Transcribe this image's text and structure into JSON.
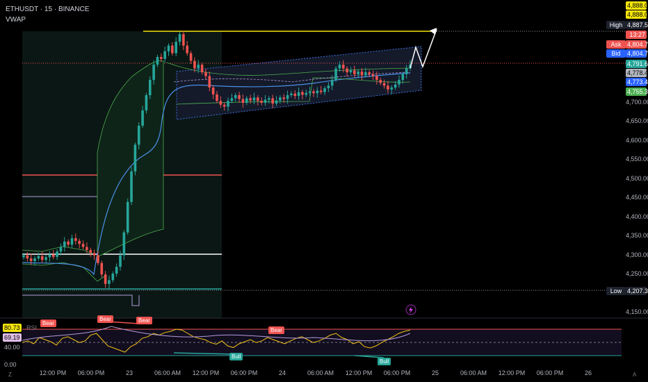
{
  "header": {
    "symbol_line": "ETHUSDT · 15 · BINANCE",
    "indicator": "VWAP"
  },
  "price_labels": {
    "top1": "4,888.02",
    "top2": "4,888.02",
    "high_tag": "High",
    "high": "4,887.59",
    "countdown": "13:27",
    "ask_tag": "Ask",
    "ask": "4,804.73",
    "bid_tag": "Bid",
    "bid": "4,804.72",
    "p1": "4,791.64",
    "p2": "4,778.40",
    "p3": "4,773.49",
    "p4": "4,755.35",
    "low_tag": "Low",
    "low": "4,207.39"
  },
  "rsi_labels": {
    "v1": "80.73",
    "v2": "69.19",
    "v3": "40.00",
    "v4": "0.00",
    "name": "RSI"
  },
  "signals": {
    "bear": "Bear",
    "bull": "Bull"
  },
  "corners": {
    "left": "Z",
    "right": "A"
  },
  "colors": {
    "up": "#26a69a",
    "down": "#ef5350",
    "vwap": "#4a8fe7",
    "high_line": "#f5e50a",
    "rsi": "#f5c518"
  },
  "chart_data": {
    "type": "candlestick",
    "y_ticks": [
      "4,700.00",
      "4,650.00",
      "4,600.00",
      "4,550.00",
      "4,500.00",
      "4,450.00",
      "4,400.00",
      "4,350.00",
      "4,300.00",
      "4,250.00",
      "4,150.00"
    ],
    "y_values": [
      4700,
      4650,
      4600,
      4550,
      4500,
      4450,
      4400,
      4350,
      4300,
      4250,
      4150
    ],
    "x_ticks": [
      "12:00 PM",
      "06:00 PM",
      "23",
      "06:00 AM",
      "12:00 PM",
      "06:00 PM",
      "24",
      "06:00 AM",
      "12:00 PM",
      "06:00 PM",
      "25",
      "06:00 AM",
      "12:00 PM",
      "06:00 PM",
      "26"
    ],
    "ylim": [
      4140,
      4900
    ],
    "high": 4887.59,
    "low": 4207.39,
    "closes": [
      4300,
      4292,
      4285,
      4292,
      4298,
      4288,
      4295,
      4302,
      4296,
      4310,
      4322,
      4336,
      4328,
      4345,
      4338,
      4330,
      4322,
      4314,
      4306,
      4300,
      4280,
      4250,
      4225,
      4235,
      4252,
      4270,
      4300,
      4360,
      4440,
      4520,
      4590,
      4640,
      4680,
      4720,
      4760,
      4800,
      4820,
      4815,
      4835,
      4850,
      4830,
      4860,
      4880,
      4850,
      4830,
      4810,
      4790,
      4800,
      4780,
      4770,
      4740,
      4722,
      4705,
      4695,
      4690,
      4705,
      4712,
      4720,
      4710,
      4700,
      4712,
      4706,
      4714,
      4705,
      4700,
      4708,
      4712,
      4698,
      4706,
      4714,
      4710,
      4720,
      4724,
      4718,
      4728,
      4721,
      4726,
      4730,
      4725,
      4732,
      4728,
      4738,
      4745,
      4760,
      4790,
      4800,
      4790,
      4780,
      4785,
      4775,
      4782,
      4772,
      4780,
      4775,
      4770,
      4760,
      4752,
      4745,
      4735,
      4740,
      4748,
      4760,
      4775,
      4790,
      4800
    ],
    "rsi": {
      "ylim": [
        0,
        100
      ],
      "levels": [
        80.73,
        69.19,
        40.0,
        0.0
      ],
      "values": [
        48,
        52,
        45,
        60,
        55,
        50,
        42,
        58,
        62,
        55,
        48,
        52,
        66,
        70,
        55,
        40,
        35,
        30,
        25,
        38,
        45,
        58,
        62,
        70,
        66,
        72,
        75,
        80,
        78,
        70,
        62,
        58,
        55,
        48,
        44,
        52,
        40,
        36,
        45,
        50,
        55,
        48,
        52,
        60,
        55,
        50,
        45,
        52,
        58,
        62,
        55,
        48,
        52,
        58,
        66,
        70,
        60,
        55,
        45,
        50,
        38,
        35,
        40,
        48,
        55,
        62,
        70,
        75,
        78
      ]
    }
  }
}
